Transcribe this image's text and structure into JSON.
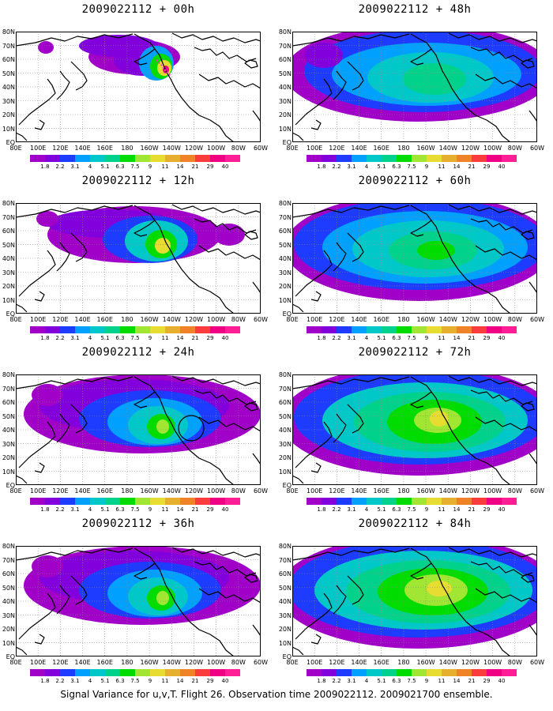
{
  "caption": "Signal Variance for u,v,T. Flight 26. Observation time 2009022112. 2009021700 ensemble.",
  "lat_labels": [
    "80N",
    "70N",
    "60N",
    "50N",
    "40N",
    "30N",
    "20N",
    "10N",
    "EQ"
  ],
  "lon_labels": [
    "80E",
    "100E",
    "120E",
    "140E",
    "160E",
    "180",
    "160W",
    "140W",
    "120W",
    "100W",
    "80W",
    "60W"
  ],
  "colorbar": {
    "labels": [
      "1.8",
      "2.2",
      "3.1",
      "4",
      "5.1",
      "6.3",
      "7.5",
      "9",
      "11",
      "14",
      "21",
      "29",
      "40"
    ],
    "colors": [
      "#a000c8",
      "#8200dc",
      "#1e3cff",
      "#00a0ff",
      "#00c8c8",
      "#00d28c",
      "#00dc00",
      "#a0e632",
      "#e6dc32",
      "#e6af2d",
      "#f08228",
      "#fa3c3c",
      "#f00082"
    ]
  },
  "panels": [
    {
      "id": "p00",
      "title": "2009022112 + 00h",
      "level": 1,
      "lead_hours": 0
    },
    {
      "id": "p48",
      "title": "2009022112 + 48h",
      "level": 4,
      "lead_hours": 48
    },
    {
      "id": "p12",
      "title": "2009022112 + 12h",
      "level": 2,
      "lead_hours": 12
    },
    {
      "id": "p60",
      "title": "2009022112 + 60h",
      "level": 5,
      "lead_hours": 60
    },
    {
      "id": "p24",
      "title": "2009022112 + 24h",
      "level": 3,
      "lead_hours": 24
    },
    {
      "id": "p72",
      "title": "2009022112 + 72h",
      "level": 6,
      "lead_hours": 72
    },
    {
      "id": "p36",
      "title": "2009022112 + 36h",
      "level": 3,
      "lead_hours": 36
    },
    {
      "id": "p84",
      "title": "2009022112 + 84h",
      "level": 7,
      "lead_hours": 84
    }
  ]
}
